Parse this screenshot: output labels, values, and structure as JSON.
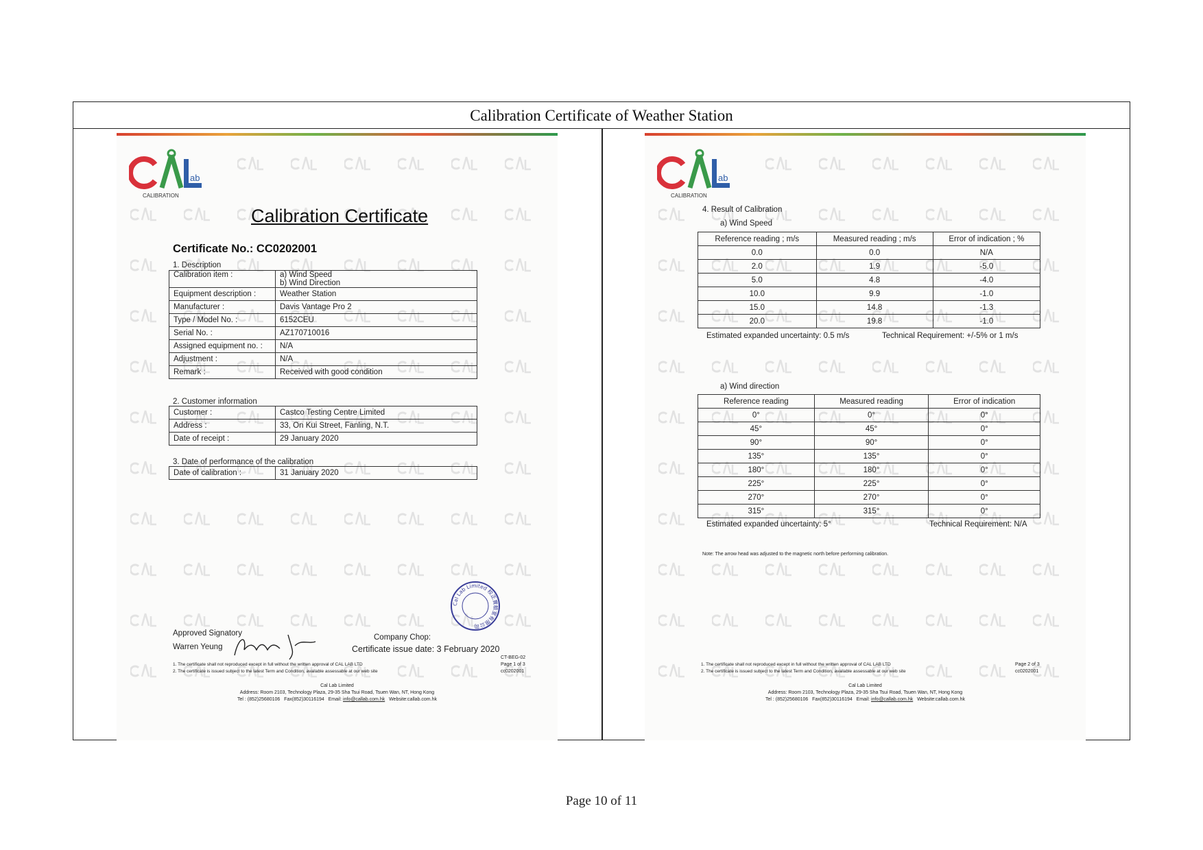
{
  "header": {
    "title": "Calibration Certificate of Weather Station"
  },
  "footer": {
    "page": "Page 10 of 11"
  },
  "logo": {
    "text": "CAL",
    "sub": "ab",
    "caption": "CALIBRATION"
  },
  "left": {
    "title": "Calibration Certificate",
    "cert_no": "Certificate No.: CC0202001",
    "s1": "1.  Description",
    "desc": [
      {
        "k": "Calibration item :",
        "v": "a)    Wind Speed",
        "v2": "b)    Wind Direction"
      },
      {
        "k": "Equipment description :",
        "v": "Weather Station"
      },
      {
        "k": "Manufacturer :",
        "v": "Davis Vantage Pro 2"
      },
      {
        "k": "Type / Model No. :",
        "v": "6152CEU"
      },
      {
        "k": "Serial No. :",
        "v": "AZ170710016"
      },
      {
        "k": "Assigned equipment no. :",
        "v": "N/A"
      },
      {
        "k": "Adjustment :",
        "v": "N/A"
      },
      {
        "k": "Remark :",
        "v": "Received with good condition"
      }
    ],
    "s2": "2.  Customer information",
    "customer": [
      {
        "k": "Customer :",
        "v": "Castco Testing Centre Limited"
      },
      {
        "k": "Address :",
        "v": "33, On Kui Street, Fanling, N.T."
      },
      {
        "k": "Date of receipt :",
        "v": "29 January 2020"
      }
    ],
    "s3": "3.  Date of performance of the calibration",
    "perf": [
      {
        "k": "Date of calibration :",
        "v": "31 January 2020"
      }
    ],
    "signatory_label": "Approved Signatory",
    "signatory_name": "Warren Yeung",
    "signature": "Warren Yeung",
    "chop_label": "Company Chop:",
    "chop": "Cal Lab Limited 校正實驗室有限公司",
    "issue_date": "Certificate issue date: 3 February 2020",
    "form_code": "CT-BEG-02",
    "page": "Page 1 of 3",
    "ref": "cc0202001"
  },
  "right": {
    "s4": "4.  Result of Calibration",
    "speed_title": "a)    Wind Speed",
    "speed_headers": [
      "Reference reading ; m/s",
      "Measured reading ; m/s",
      "Error of indication ; %"
    ],
    "speed_rows": [
      [
        "0.0",
        "0.0",
        "N/A"
      ],
      [
        "2.0",
        "1.9",
        "-5.0"
      ],
      [
        "5.0",
        "4.8",
        "-4.0"
      ],
      [
        "10.0",
        "9.9",
        "-1.0"
      ],
      [
        "15.0",
        "14.8",
        "-1.3"
      ],
      [
        "20.0",
        "19.8",
        "-1.0"
      ]
    ],
    "speed_uncertainty": "Estimated expanded uncertainty: 0.5 m/s",
    "speed_requirement": "Technical  Requirement:  +/-5%  or  1  m/s",
    "dir_title": "a)    Wind direction",
    "dir_headers": [
      "Reference reading",
      "Measured reading",
      "Error of indication"
    ],
    "dir_rows": [
      [
        "0°",
        "0°",
        "0°"
      ],
      [
        "45°",
        "45°",
        "0°"
      ],
      [
        "90°",
        "90°",
        "0°"
      ],
      [
        "135°",
        "135°",
        "0°"
      ],
      [
        "180°",
        "180°",
        "0°"
      ],
      [
        "225°",
        "225°",
        "0°"
      ],
      [
        "270°",
        "270°",
        "0°"
      ],
      [
        "315°",
        "315°",
        "0°"
      ]
    ],
    "dir_uncertainty": "Estimated expanded uncertainty: 5°",
    "dir_requirement": "Technical  Requirement:  N/A",
    "note": "Note: The arrow head was adjusted to the magnetic north before performing calibration.",
    "page": "Page 2 of 3",
    "ref": "cc0202001"
  },
  "common": {
    "note1": "1.   The certificate shall not reproduced except in full without the written approval of CAL LAB LTD",
    "note2": "2.   The certificate is issued subject to the latest Term and Condition, available assessable at our web site",
    "company": "Cal Lab Limited",
    "address": "Address: Room 2103, Technology Plaza, 29-35 Sha Tsui Road, Tsuen Wan, NT, Hong Kong",
    "tel": "Tel : (852)25680106",
    "fax": "Fax(852)30116194",
    "email_label": "Email:",
    "email": "info@callab.com.hk",
    "website": "Website:callab.com.hk"
  },
  "colors": {
    "logo_red": "#d9313a",
    "logo_green": "#3a9a4a",
    "logo_blue": "#2f5ea8",
    "stamp": "#3b3f9a"
  }
}
